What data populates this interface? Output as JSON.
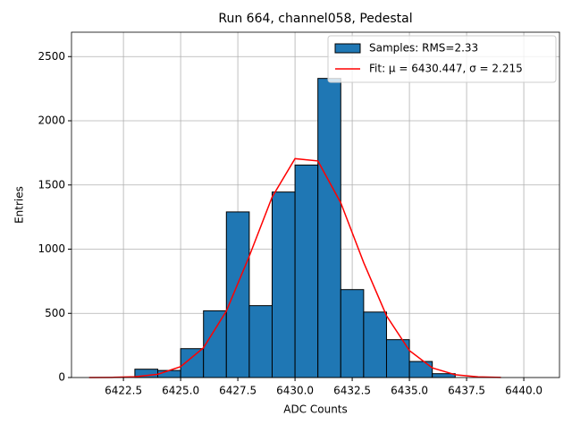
{
  "chart_data": {
    "type": "histogram",
    "title": "Run 664, channel058, Pedestal",
    "x_label": "ADC Counts",
    "y_label": "Entries",
    "name": "Samples: RMS=2.33",
    "color": "#1f77b4",
    "edgecolor": "#000000",
    "bins": [
      6423,
      6424,
      6425,
      6426,
      6427,
      6428,
      6429,
      6430,
      6431,
      6432,
      6433,
      6434,
      6435,
      6436,
      6437
    ],
    "values": [
      65,
      55,
      225,
      520,
      1290,
      560,
      1445,
      1655,
      2330,
      685,
      510,
      295,
      125,
      30
    ],
    "overlay": {
      "type": "line",
      "name": "Fit: μ = 6430.447, σ = 2.215",
      "color": "#ff0000",
      "x": [
        6421,
        6422,
        6423,
        6424,
        6425,
        6426,
        6427,
        6428,
        6429,
        6430,
        6431,
        6432,
        6433,
        6434,
        6435,
        6436,
        6437,
        6438,
        6439
      ],
      "values": [
        0.2,
        1.2,
        6.1,
        25.2,
        84.6,
        232,
        518,
        945,
        1406,
        1705,
        1687,
        1361,
        896,
        481,
        210,
        75,
        21.9,
        5.2,
        1.0
      ]
    },
    "xlim": [
      6420.23,
      6441.56
    ],
    "xticks": [
      6422.5,
      {
        "value": 6425,
        "label": "6425.0"
      },
      6427.5,
      {
        "value": 6430,
        "label": "6430.0"
      },
      6432.5,
      {
        "value": 6435,
        "label": "6435.0"
      },
      6437.5,
      {
        "value": 6440,
        "label": "6440.0"
      }
    ],
    "ylim": [
      0,
      2690
    ],
    "yticks": [
      0,
      500,
      1000,
      1500,
      2000,
      2500
    ],
    "grid": true,
    "legend": "upper right"
  }
}
